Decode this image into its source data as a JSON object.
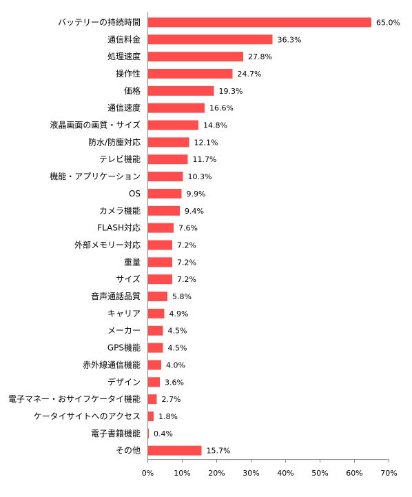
{
  "chart_data": {
    "type": "bar",
    "orientation": "horizontal",
    "title": "",
    "xlabel": "",
    "ylabel": "",
    "categories": [
      "バッテリーの持続時間",
      "通信料金",
      "処理速度",
      "操作性",
      "価格",
      "通信速度",
      "液晶画面の画質・サイズ",
      "防水/防塵対応",
      "テレビ機能",
      "機能・アプリケーション",
      "OS",
      "カメラ機能",
      "FLASH対応",
      "外部メモリー対応",
      "重量",
      "サイズ",
      "音声通話品質",
      "キャリア",
      "メーカー",
      "GPS機能",
      "赤外線通信機能",
      "デザイン",
      "電子マネー・おサイフケータイ機能",
      "ケータイサイトへのアクセス",
      "電子書籍機能",
      "その他"
    ],
    "values": [
      65.0,
      36.3,
      27.8,
      24.7,
      19.3,
      16.6,
      14.8,
      12.1,
      11.7,
      10.3,
      9.9,
      9.4,
      7.6,
      7.2,
      7.2,
      7.2,
      5.8,
      4.9,
      4.5,
      4.5,
      4.0,
      3.6,
      2.7,
      1.8,
      0.4,
      15.7
    ],
    "value_labels": [
      "65.0%",
      "36.3%",
      "27.8%",
      "24.7%",
      "19.3%",
      "16.6%",
      "14.8%",
      "12.1%",
      "11.7%",
      "10.3%",
      "9.9%",
      "9.4%",
      "7.6%",
      "7.2%",
      "7.2%",
      "7.2%",
      "5.8%",
      "4.9%",
      "4.5%",
      "4.5%",
      "4.0%",
      "3.6%",
      "2.7%",
      "1.8%",
      "0.4%",
      "15.7%"
    ],
    "xlim": [
      0,
      70
    ],
    "x_ticks": [
      0,
      10,
      20,
      30,
      40,
      50,
      60,
      70
    ],
    "x_tick_labels": [
      "0%",
      "10%",
      "20%",
      "30%",
      "40%",
      "50%",
      "60%",
      "70%"
    ],
    "bar_color": "#FF4C4C",
    "axis_color": "#868686",
    "grid": false,
    "legend": "none"
  }
}
